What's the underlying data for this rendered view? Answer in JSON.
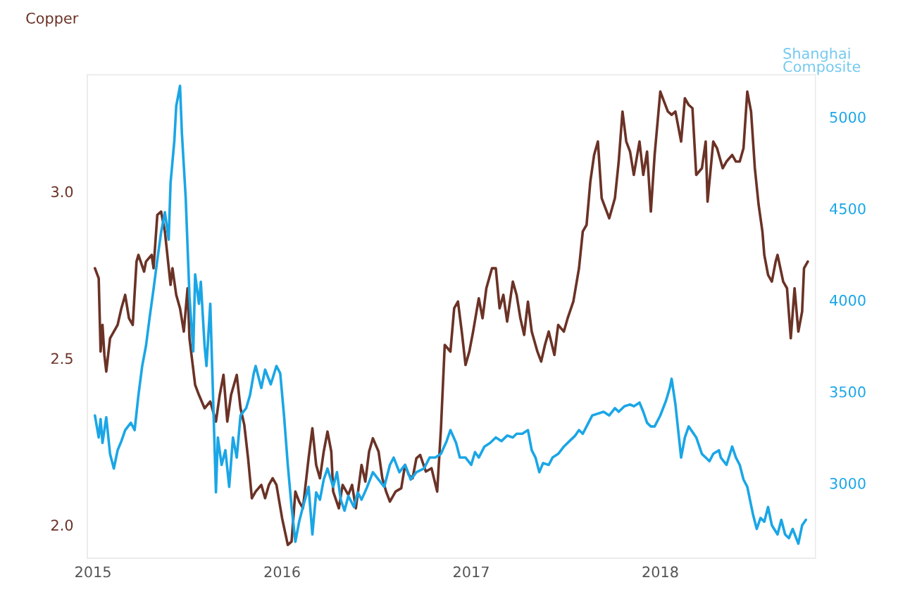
{
  "chart_data": {
    "type": "line",
    "ylabel": "Copper",
    "y2label": "Shanghai\nComposite",
    "xlim": [
      2014.97,
      2018.82
    ],
    "xticks": [
      2015,
      2016,
      2017,
      2018
    ],
    "ylim": [
      1.9,
      3.35
    ],
    "yticks": [
      {
        "value": 2.0,
        "label": "2.0"
      },
      2.5,
      {
        "value": 3.0,
        "label": "3.0"
      }
    ],
    "y2lim": [
      2590,
      5230
    ],
    "y2ticks": [
      3000,
      3500,
      4000,
      4500,
      5000
    ],
    "grid": false,
    "series": [
      {
        "color": "#6b3226",
        "x": [
          2015.01,
          2015.03,
          2015.04,
          2015.05,
          2015.06,
          2015.07,
          2015.09,
          2015.11,
          2015.13,
          2015.15,
          2015.17,
          2015.19,
          2015.21,
          2015.23,
          2015.24,
          2015.27,
          2015.28,
          2015.31,
          2015.32,
          2015.34,
          2015.36,
          2015.38,
          2015.41,
          2015.42,
          2015.44,
          2015.46,
          2015.48,
          2015.5,
          2015.51,
          2015.54,
          2015.56,
          2015.59,
          2015.62,
          2015.65,
          2015.67,
          2015.69,
          2015.71,
          2015.73,
          2015.76,
          2015.78,
          2015.8,
          2015.82,
          2015.84,
          2015.86,
          2015.89,
          2015.91,
          2015.93,
          2015.95,
          2015.97,
          2016.0,
          2016.03,
          2016.05,
          2016.07,
          2016.09,
          2016.11,
          2016.14,
          2016.16,
          2016.18,
          2016.2,
          2016.22,
          2016.24,
          2016.26,
          2016.27,
          2016.3,
          2016.32,
          2016.35,
          2016.37,
          2016.39,
          2016.42,
          2016.44,
          2016.46,
          2016.48,
          2016.51,
          2016.53,
          2016.55,
          2016.57,
          2016.6,
          2016.63,
          2016.65,
          2016.67,
          2016.69,
          2016.71,
          2016.73,
          2016.76,
          2016.79,
          2016.82,
          2016.84,
          2016.86,
          2016.89,
          2016.91,
          2016.93,
          2016.95,
          2016.97,
          2016.99,
          2017.01,
          2017.04,
          2017.06,
          2017.08,
          2017.11,
          2017.13,
          2017.15,
          2017.17,
          2017.19,
          2017.22,
          2017.24,
          2017.26,
          2017.28,
          2017.3,
          2017.32,
          2017.35,
          2017.37,
          2017.39,
          2017.41,
          2017.44,
          2017.46,
          2017.49,
          2017.51,
          2017.54,
          2017.57,
          2017.59,
          2017.61,
          2017.63,
          2017.65,
          2017.67,
          2017.69,
          2017.71,
          2017.73,
          2017.76,
          2017.78,
          2017.8,
          2017.82,
          2017.84,
          2017.86,
          2017.89,
          2017.91,
          2017.93,
          2017.95,
          2017.97,
          2018.0,
          2018.02,
          2018.04,
          2018.06,
          2018.08,
          2018.11,
          2018.13,
          2018.15,
          2018.17,
          2018.19,
          2018.22,
          2018.24,
          2018.25,
          2018.28,
          2018.3,
          2018.33,
          2018.35,
          2018.38,
          2018.4,
          2018.42,
          2018.44,
          2018.46,
          2018.48,
          2018.5,
          2018.52,
          2018.54,
          2018.55,
          2018.57,
          2018.59,
          2018.61,
          2018.62,
          2018.65,
          2018.67,
          2018.69,
          2018.71,
          2018.73,
          2018.75,
          2018.76,
          2018.78
        ],
        "values": [
          2.77,
          2.74,
          2.52,
          2.6,
          2.51,
          2.46,
          2.56,
          2.58,
          2.6,
          2.65,
          2.69,
          2.62,
          2.6,
          2.79,
          2.81,
          2.76,
          2.79,
          2.81,
          2.77,
          2.93,
          2.94,
          2.88,
          2.72,
          2.77,
          2.69,
          2.65,
          2.58,
          2.71,
          2.56,
          2.42,
          2.39,
          2.35,
          2.37,
          2.31,
          2.39,
          2.45,
          2.31,
          2.39,
          2.45,
          2.35,
          2.3,
          2.2,
          2.08,
          2.1,
          2.12,
          2.08,
          2.12,
          2.14,
          2.12,
          2.02,
          1.94,
          1.95,
          2.1,
          2.07,
          2.05,
          2.2,
          2.29,
          2.18,
          2.14,
          2.22,
          2.28,
          2.22,
          2.1,
          2.05,
          2.12,
          2.09,
          2.12,
          2.05,
          2.18,
          2.13,
          2.22,
          2.26,
          2.22,
          2.14,
          2.1,
          2.07,
          2.1,
          2.11,
          2.18,
          2.15,
          2.14,
          2.2,
          2.21,
          2.16,
          2.17,
          2.1,
          2.29,
          2.54,
          2.52,
          2.65,
          2.67,
          2.58,
          2.48,
          2.52,
          2.58,
          2.68,
          2.62,
          2.71,
          2.77,
          2.77,
          2.65,
          2.69,
          2.61,
          2.73,
          2.69,
          2.62,
          2.57,
          2.67,
          2.58,
          2.52,
          2.49,
          2.54,
          2.58,
          2.51,
          2.6,
          2.58,
          2.62,
          2.67,
          2.77,
          2.88,
          2.9,
          3.03,
          3.11,
          3.15,
          2.98,
          2.95,
          2.92,
          2.98,
          3.09,
          3.24,
          3.15,
          3.12,
          3.05,
          3.15,
          3.05,
          3.12,
          2.94,
          3.11,
          3.3,
          3.27,
          3.24,
          3.23,
          3.24,
          3.15,
          3.28,
          3.26,
          3.25,
          3.05,
          3.07,
          3.15,
          2.97,
          3.15,
          3.13,
          3.07,
          3.09,
          3.11,
          3.09,
          3.09,
          3.13,
          3.3,
          3.24,
          3.07,
          2.96,
          2.88,
          2.81,
          2.75,
          2.73,
          2.79,
          2.81,
          2.73,
          2.71,
          2.56,
          2.71,
          2.58,
          2.64,
          2.77,
          2.79
        ]
      },
      {
        "color": "#1aa6e6",
        "axis": "y2",
        "x": [
          2015.01,
          2015.03,
          2015.04,
          2015.05,
          2015.07,
          2015.09,
          2015.11,
          2015.13,
          2015.15,
          2015.17,
          2015.2,
          2015.22,
          2015.24,
          2015.26,
          2015.28,
          2015.3,
          2015.32,
          2015.34,
          2015.36,
          2015.38,
          2015.4,
          2015.41,
          2015.43,
          2015.44,
          2015.46,
          2015.47,
          2015.49,
          2015.5,
          2015.51,
          2015.53,
          2015.54,
          2015.56,
          2015.57,
          2015.59,
          2015.6,
          2015.62,
          2015.65,
          2015.66,
          2015.68,
          2015.7,
          2015.72,
          2015.74,
          2015.76,
          2015.78,
          2015.81,
          2015.83,
          2015.85,
          2015.86,
          2015.89,
          2015.91,
          2015.94,
          2015.97,
          2015.99,
          2016.01,
          2016.03,
          2016.05,
          2016.07,
          2016.09,
          2016.11,
          2016.14,
          2016.16,
          2016.18,
          2016.2,
          2016.22,
          2016.24,
          2016.27,
          2016.29,
          2016.31,
          2016.33,
          2016.35,
          2016.38,
          2016.4,
          2016.42,
          2016.45,
          2016.48,
          2016.51,
          2016.54,
          2016.57,
          2016.59,
          2016.62,
          2016.65,
          2016.68,
          2016.71,
          2016.75,
          2016.78,
          2016.81,
          2016.84,
          2016.87,
          2016.89,
          2016.92,
          2016.94,
          2016.97,
          2017.0,
          2017.02,
          2017.04,
          2017.07,
          2017.1,
          2017.13,
          2017.16,
          2017.19,
          2017.22,
          2017.24,
          2017.27,
          2017.3,
          2017.32,
          2017.34,
          2017.36,
          2017.38,
          2017.41,
          2017.43,
          2017.46,
          2017.49,
          2017.52,
          2017.55,
          2017.57,
          2017.59,
          2017.62,
          2017.64,
          2017.67,
          2017.7,
          2017.73,
          2017.76,
          2017.78,
          2017.81,
          2017.84,
          2017.86,
          2017.89,
          2017.91,
          2017.93,
          2017.95,
          2017.97,
          2018.0,
          2018.03,
          2018.05,
          2018.06,
          2018.08,
          2018.11,
          2018.13,
          2018.15,
          2018.17,
          2018.19,
          2018.22,
          2018.24,
          2018.26,
          2018.28,
          2018.31,
          2018.32,
          2018.35,
          2018.38,
          2018.4,
          2018.42,
          2018.44,
          2018.46,
          2018.49,
          2018.51,
          2018.53,
          2018.55,
          2018.57,
          2018.59,
          2018.62,
          2018.64,
          2018.66,
          2018.68,
          2018.7,
          2018.73,
          2018.75,
          2018.77
        ],
        "values": [
          3370,
          3250,
          3350,
          3220,
          3360,
          3160,
          3080,
          3180,
          3230,
          3290,
          3330,
          3290,
          3480,
          3640,
          3750,
          3910,
          4060,
          4220,
          4370,
          4480,
          4330,
          4640,
          4870,
          5060,
          5170,
          4910,
          4560,
          4290,
          4020,
          3720,
          4140,
          3980,
          4100,
          3750,
          3640,
          3980,
          2950,
          3250,
          3100,
          3180,
          2980,
          3250,
          3140,
          3370,
          3410,
          3480,
          3600,
          3640,
          3520,
          3620,
          3540,
          3640,
          3600,
          3370,
          3100,
          2870,
          2680,
          2790,
          2870,
          2980,
          2720,
          2950,
          2910,
          3020,
          3080,
          2980,
          3060,
          2910,
          2850,
          2930,
          2870,
          2950,
          2910,
          2980,
          3060,
          3020,
          2980,
          3100,
          3140,
          3060,
          3100,
          3020,
          3060,
          3080,
          3140,
          3140,
          3160,
          3230,
          3290,
          3220,
          3140,
          3140,
          3100,
          3170,
          3140,
          3200,
          3220,
          3250,
          3230,
          3260,
          3250,
          3270,
          3270,
          3290,
          3180,
          3140,
          3060,
          3110,
          3100,
          3140,
          3160,
          3200,
          3230,
          3260,
          3290,
          3270,
          3330,
          3370,
          3380,
          3390,
          3370,
          3410,
          3390,
          3420,
          3430,
          3420,
          3440,
          3390,
          3330,
          3310,
          3310,
          3370,
          3450,
          3520,
          3570,
          3430,
          3140,
          3250,
          3310,
          3280,
          3250,
          3160,
          3140,
          3120,
          3160,
          3180,
          3140,
          3100,
          3200,
          3140,
          3100,
          3020,
          2980,
          2830,
          2750,
          2810,
          2790,
          2870,
          2770,
          2720,
          2800,
          2720,
          2700,
          2750,
          2670,
          2770,
          2800
        ]
      }
    ]
  }
}
